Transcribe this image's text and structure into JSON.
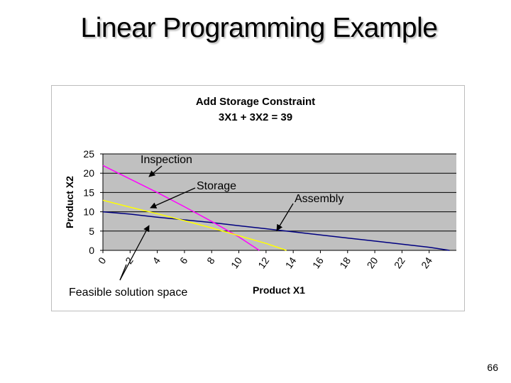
{
  "slide": {
    "title": "Linear Programming Example",
    "page_number": "66"
  },
  "chart_data": {
    "type": "line",
    "title": "Add Storage Constraint",
    "subtitle": "3X1 + 3X2 = 39",
    "xlabel": "Product X1",
    "ylabel": "Product X2",
    "xlim": [
      0,
      26
    ],
    "ylim": [
      0,
      25
    ],
    "xticks": [
      "0",
      "2",
      "4",
      "6",
      "8",
      "10",
      "12",
      "14",
      "16",
      "18",
      "20",
      "22",
      "24"
    ],
    "yticks": [
      "0",
      "5",
      "10",
      "15",
      "20",
      "25"
    ],
    "plot_background": "#c0c0c0",
    "grid": true,
    "series": [
      {
        "color": "#000080",
        "x": [
          0,
          2,
          4,
          6,
          8,
          10,
          12,
          14,
          16,
          18,
          20,
          22,
          24,
          25.5
        ],
        "values": [
          10,
          9.4,
          8.6,
          7.9,
          7.2,
          6.4,
          5.6,
          4.8,
          4.0,
          3.2,
          2.4,
          1.6,
          0.8,
          0
        ]
      },
      {
        "color": "#ff00ff",
        "x": [
          0,
          2,
          4,
          6,
          8,
          10,
          11.5
        ],
        "values": [
          22,
          18.5,
          15,
          11.3,
          7.5,
          3.5,
          0
        ]
      },
      {
        "color": "#ffff00",
        "x": [
          0,
          2,
          4,
          6,
          8,
          10,
          12,
          13.5
        ],
        "values": [
          13,
          11.2,
          9.5,
          7.7,
          5.8,
          3.8,
          1.8,
          0
        ]
      }
    ],
    "annotations": [
      {
        "label": "Inspection"
      },
      {
        "label": "Storage"
      },
      {
        "label": "Assembly"
      },
      {
        "label": "Feasible solution space"
      }
    ]
  }
}
